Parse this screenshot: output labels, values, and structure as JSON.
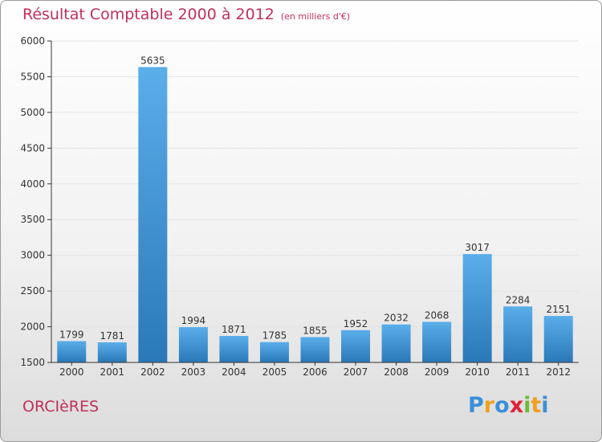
{
  "header": {
    "title": "Résultat Comptable 2000 à 2012",
    "unit_note": "(en milliers d'€)"
  },
  "footer": {
    "commune": "ORCIèRES",
    "logo_letters": [
      "P",
      "r",
      "o",
      "x",
      "i",
      "t",
      "i"
    ],
    "logo_colors": [
      "#3a8fd8",
      "#f0a020",
      "#3a8fd8",
      "#e0203a",
      "#6cbb3c",
      "#f0a020",
      "#3a8fd8"
    ]
  },
  "colors": {
    "bar_top": "#5aaeea",
    "bar_bottom": "#2a78b8",
    "grid": "#e4e4e4",
    "accent": "#c0305a"
  },
  "chart_data": {
    "type": "bar",
    "categories": [
      "2000",
      "2001",
      "2002",
      "2003",
      "2004",
      "2005",
      "2006",
      "2007",
      "2008",
      "2009",
      "2010",
      "2011",
      "2012"
    ],
    "values": [
      1799,
      1781,
      5635,
      1994,
      1871,
      1785,
      1855,
      1952,
      2032,
      2068,
      3017,
      2284,
      2151
    ],
    "yticks": [
      1500,
      2000,
      2500,
      3000,
      3500,
      4000,
      4500,
      5000,
      5500,
      6000
    ],
    "ylim": [
      1500,
      6000
    ],
    "grid": true,
    "title": "Résultat Comptable 2000 à 2012"
  }
}
